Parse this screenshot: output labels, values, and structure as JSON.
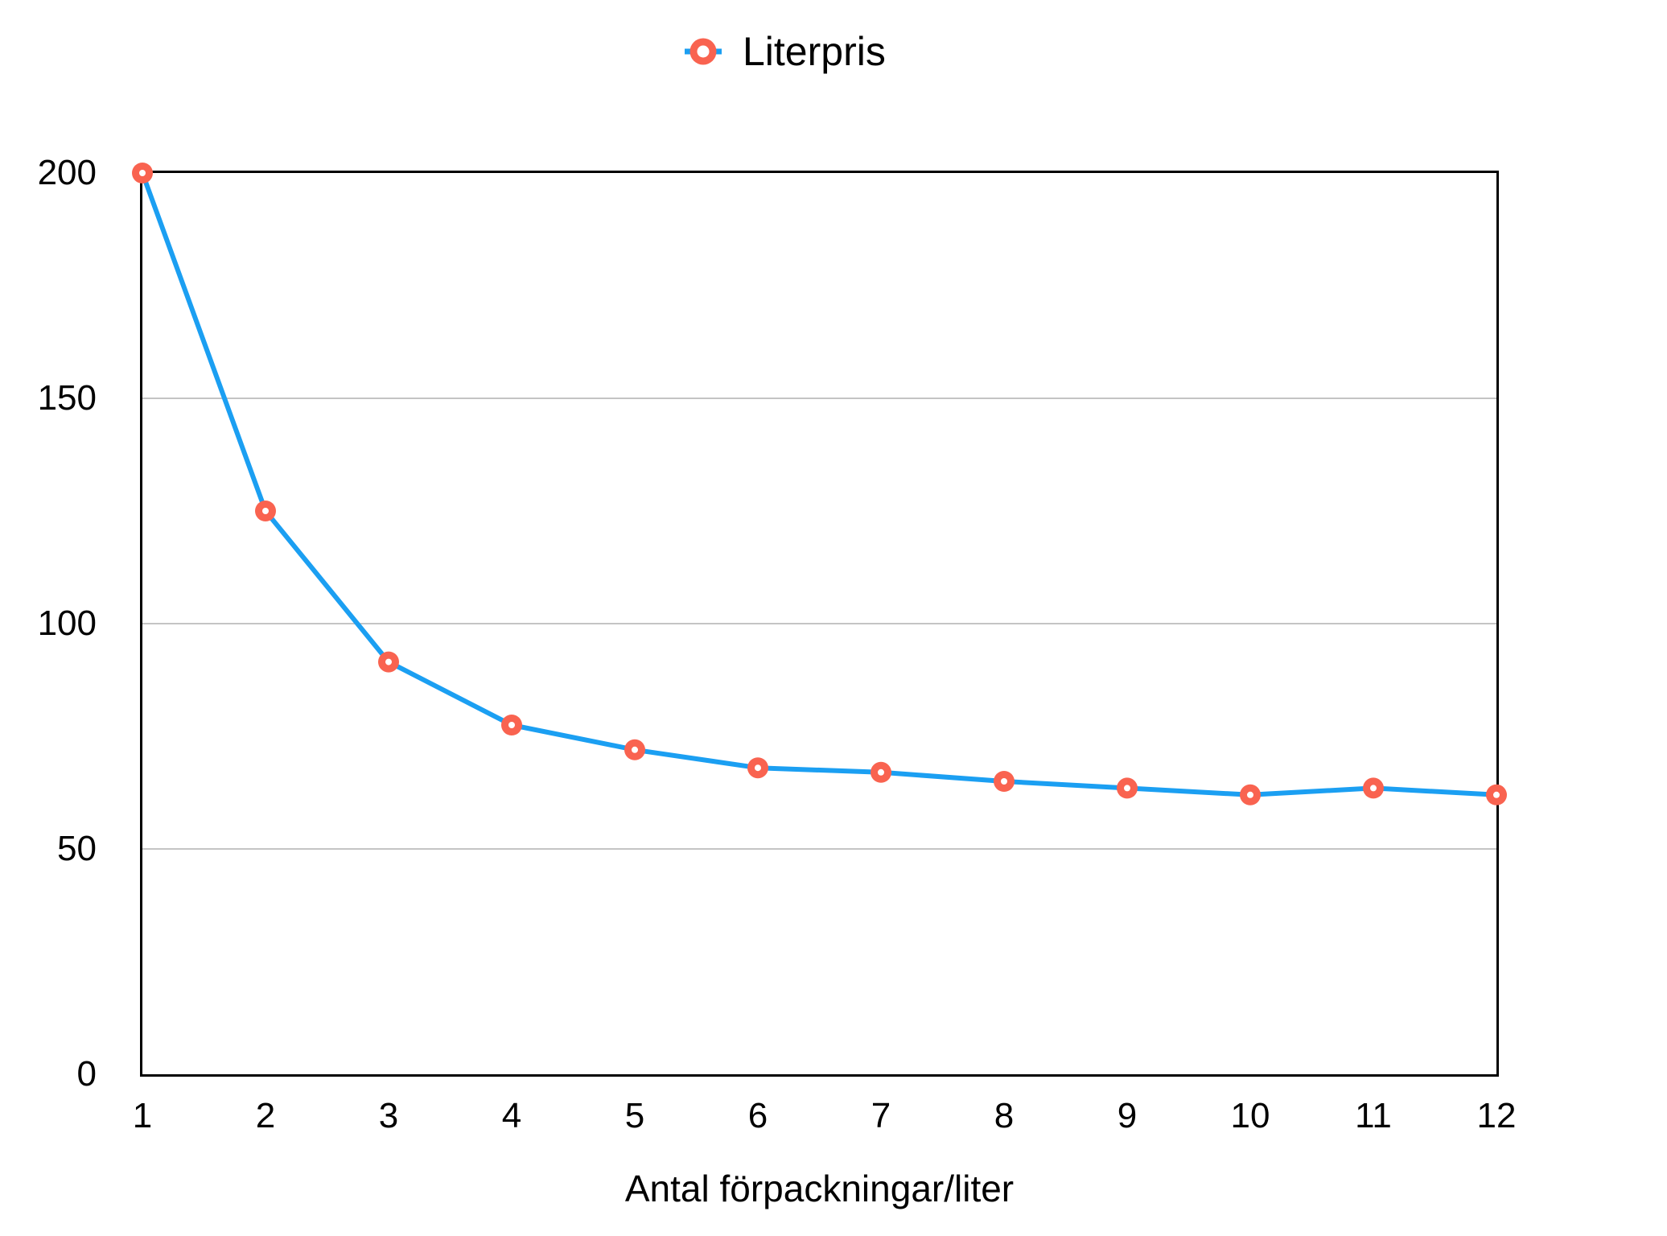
{
  "chart_data": {
    "type": "line",
    "title": "",
    "legend": "Literpris",
    "legend_position": "top-center",
    "xlabel": "Antal förpackningar/liter",
    "ylabel": "",
    "x": [
      1,
      2,
      3,
      4,
      5,
      6,
      7,
      8,
      9,
      10,
      11,
      12
    ],
    "series": [
      {
        "name": "Literpris",
        "values": [
          200,
          125,
          91.5,
          77.5,
          72,
          68,
          67,
          65,
          63.5,
          62,
          63.5,
          62
        ]
      }
    ],
    "ylim": [
      0,
      200
    ],
    "y_ticks": [
      0,
      50,
      100,
      150,
      200
    ],
    "x_ticks": [
      1,
      2,
      3,
      4,
      5,
      6,
      7,
      8,
      9,
      10,
      11,
      12
    ],
    "grid": "horizontal-only",
    "marker": "open-circle",
    "colors": {
      "line": "#1B9FF2",
      "marker": "#F96350",
      "marker_hole": "#FFFFFF",
      "grid": "#C4C4C4",
      "frame": "#000000",
      "text": "#000000",
      "background": "#FFFFFF"
    }
  }
}
